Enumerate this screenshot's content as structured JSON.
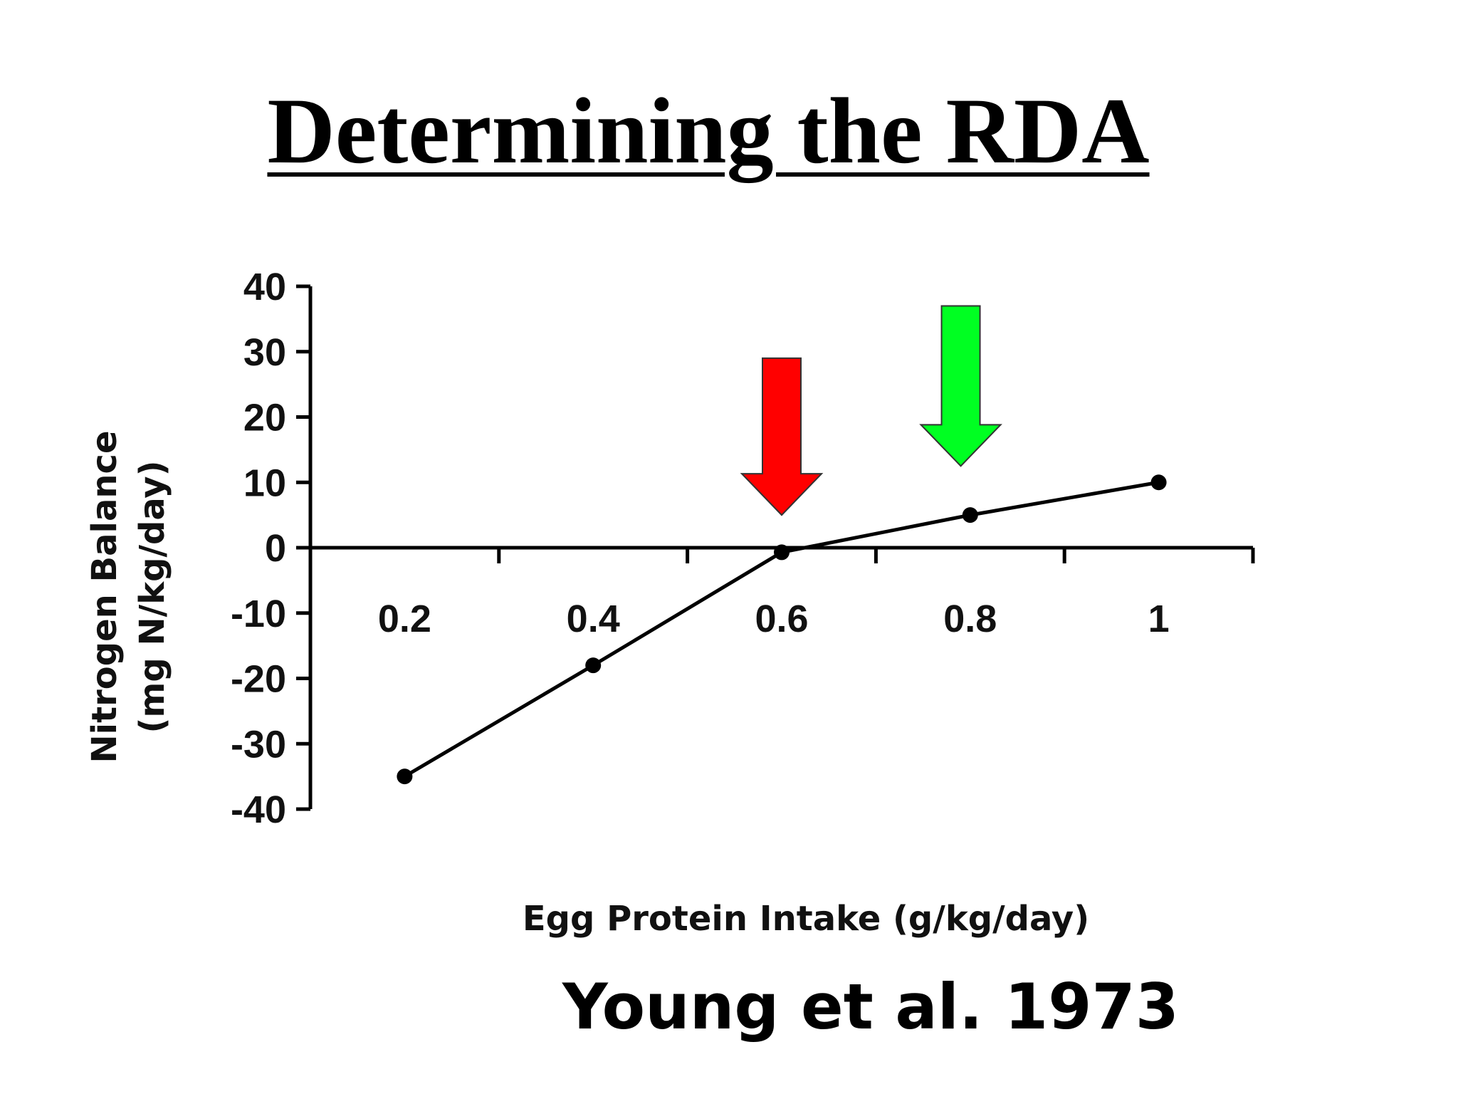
{
  "slide": {
    "title": "Determining the RDA",
    "citation": "Young et al. 1973"
  },
  "colors": {
    "line": "#000000",
    "red_arrow": "#ff0000",
    "green_arrow": "#00ff22"
  },
  "chart_data": {
    "type": "line",
    "xlabel": "Egg Protein Intake (g/kg/day)",
    "ylabel": [
      "Nitrogen Balance",
      "(mg N/kg/day)"
    ],
    "xlim": [
      0.1,
      1.1
    ],
    "ylim": [
      -40,
      40
    ],
    "x_ticks": [
      0.2,
      0.4,
      0.6,
      0.8,
      1
    ],
    "x_tick_labels": [
      "0.2",
      "0.4",
      "0.6",
      "0.8",
      "1"
    ],
    "y_ticks": [
      40,
      30,
      20,
      10,
      0,
      -10,
      -20,
      -30,
      -40
    ],
    "grid": false,
    "legend": "none",
    "series": [
      {
        "x": [
          0.2,
          0.4,
          0.6,
          0.8,
          1.0
        ],
        "y": [
          -35,
          -18,
          -0.7,
          5,
          10
        ]
      }
    ],
    "annotations": [
      {
        "type": "arrow-down",
        "color": "red",
        "x": 0.6,
        "y_tip": 5,
        "y_top": 29
      },
      {
        "type": "arrow-down",
        "color": "green",
        "x": 0.79,
        "y_tip": 12.5,
        "y_top": 37
      }
    ]
  }
}
